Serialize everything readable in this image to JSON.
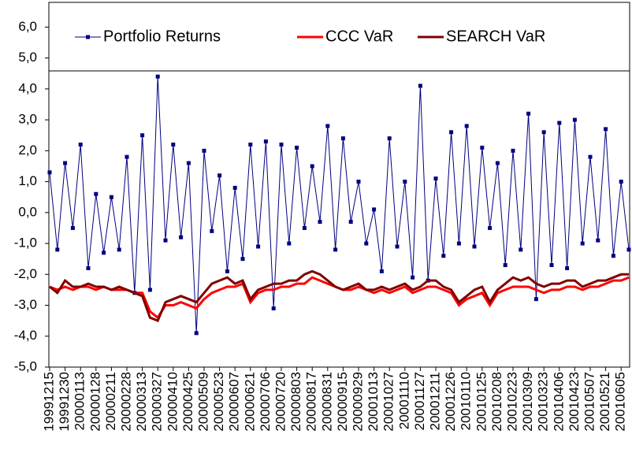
{
  "chart_data": {
    "type": "line",
    "categories": [
      "19991215",
      null,
      "19991230",
      null,
      "20000113",
      null,
      "20000128",
      null,
      "20000211",
      null,
      "20000228",
      null,
      "20000313",
      null,
      "20000327",
      null,
      "20000410",
      null,
      "20000425",
      null,
      "20000509",
      null,
      "20000523",
      null,
      "20000607",
      null,
      "20000621",
      null,
      "20000706",
      null,
      "20000720",
      null,
      "20000803",
      null,
      "20000817",
      null,
      "20000831",
      null,
      "20000915",
      null,
      "20000929",
      null,
      "20001013",
      null,
      "20001027",
      null,
      "20001110",
      null,
      "20001127",
      null,
      "20001211",
      null,
      "20001226",
      null,
      "20010110",
      null,
      "20010125",
      null,
      "20010208",
      null,
      "20010223",
      null,
      "20010309",
      null,
      "20010323",
      null,
      "20010406",
      null,
      "20010423",
      null,
      "20010507",
      null,
      "20010521",
      null,
      "20010605",
      null
    ],
    "series": [
      {
        "name": "Portfolio Returns",
        "color": "#000080",
        "marker": "square",
        "values": [
          1.3,
          -1.2,
          1.6,
          -0.5,
          2.2,
          -1.8,
          0.6,
          -1.3,
          0.5,
          -1.2,
          1.8,
          -2.6,
          2.5,
          -2.5,
          4.4,
          -0.9,
          2.2,
          -0.8,
          1.6,
          -3.9,
          2.0,
          -0.6,
          1.2,
          -1.9,
          0.8,
          -1.5,
          2.2,
          -1.1,
          2.3,
          -3.1,
          2.2,
          -1.0,
          2.1,
          -0.5,
          1.5,
          -0.3,
          2.8,
          -1.2,
          2.4,
          -0.3,
          1.0,
          -1.0,
          0.1,
          -1.9,
          2.4,
          -1.1,
          1.0,
          -2.1,
          4.1,
          -2.2,
          1.1,
          -1.4,
          2.6,
          -1.0,
          2.8,
          -1.1,
          2.1,
          -0.5,
          1.6,
          -1.7,
          2.0,
          -1.2,
          3.2,
          -2.8,
          2.6,
          -1.7,
          2.9,
          -1.8,
          3.0,
          -1.0,
          1.8,
          -0.9,
          2.7,
          -1.4,
          1.0,
          -1.2
        ]
      },
      {
        "name": "CCC VaR",
        "color": "#ff0000",
        "values": [
          -2.4,
          -2.5,
          -2.4,
          -2.5,
          -2.4,
          -2.4,
          -2.5,
          -2.4,
          -2.5,
          -2.5,
          -2.5,
          -2.6,
          -2.6,
          -3.2,
          -3.4,
          -3.0,
          -3.0,
          -2.9,
          -3.0,
          -3.1,
          -2.8,
          -2.6,
          -2.5,
          -2.4,
          -2.4,
          -2.3,
          -2.9,
          -2.6,
          -2.5,
          -2.5,
          -2.4,
          -2.4,
          -2.3,
          -2.3,
          -2.1,
          -2.2,
          -2.3,
          -2.4,
          -2.5,
          -2.5,
          -2.4,
          -2.5,
          -2.6,
          -2.5,
          -2.6,
          -2.5,
          -2.4,
          -2.6,
          -2.5,
          -2.4,
          -2.4,
          -2.5,
          -2.6,
          -3.0,
          -2.8,
          -2.7,
          -2.6,
          -3.0,
          -2.6,
          -2.5,
          -2.4,
          -2.4,
          -2.4,
          -2.5,
          -2.6,
          -2.5,
          -2.5,
          -2.4,
          -2.4,
          -2.5,
          -2.4,
          -2.4,
          -2.3,
          -2.2,
          -2.2,
          -2.1
        ]
      },
      {
        "name": "SEARCH VaR",
        "color": "#800000",
        "values": [
          -2.4,
          -2.6,
          -2.2,
          -2.4,
          -2.4,
          -2.3,
          -2.4,
          -2.4,
          -2.5,
          -2.4,
          -2.5,
          -2.6,
          -2.7,
          -3.4,
          -3.5,
          -2.9,
          -2.8,
          -2.7,
          -2.8,
          -2.9,
          -2.6,
          -2.3,
          -2.2,
          -2.1,
          -2.3,
          -2.2,
          -2.8,
          -2.5,
          -2.4,
          -2.3,
          -2.3,
          -2.2,
          -2.2,
          -2.0,
          -1.9,
          -2.0,
          -2.2,
          -2.4,
          -2.5,
          -2.4,
          -2.3,
          -2.5,
          -2.5,
          -2.4,
          -2.5,
          -2.4,
          -2.3,
          -2.5,
          -2.4,
          -2.2,
          -2.2,
          -2.4,
          -2.5,
          -2.9,
          -2.7,
          -2.5,
          -2.4,
          -2.9,
          -2.5,
          -2.3,
          -2.1,
          -2.2,
          -2.1,
          -2.3,
          -2.4,
          -2.3,
          -2.3,
          -2.2,
          -2.2,
          -2.4,
          -2.3,
          -2.2,
          -2.2,
          -2.1,
          -2.0,
          -2.0
        ]
      }
    ],
    "ylim": [
      -5,
      6.8
    ],
    "yticks": [
      {
        "value": -5,
        "label": "-5,0"
      },
      {
        "value": -4,
        "label": "-4,0"
      },
      {
        "value": -3,
        "label": "-3,0"
      },
      {
        "value": -2,
        "label": "-2,0"
      },
      {
        "value": -1,
        "label": "-1,0"
      },
      {
        "value": 0,
        "label": "0,0"
      },
      {
        "value": 1,
        "label": "1,0"
      },
      {
        "value": 2,
        "label": "2,0"
      },
      {
        "value": 3,
        "label": "3,0"
      },
      {
        "value": 4,
        "label": "4,0"
      },
      {
        "value": 5,
        "label": "5,0"
      },
      {
        "value": 6,
        "label": "6,0"
      }
    ],
    "grid": false,
    "legend": "top"
  }
}
